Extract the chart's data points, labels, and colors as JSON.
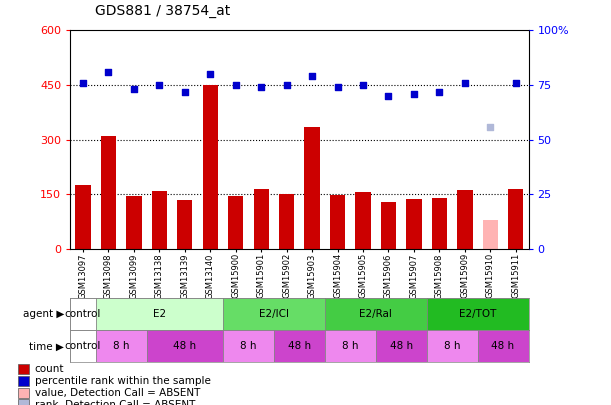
{
  "title": "GDS881 / 38754_at",
  "samples": [
    "GSM13097",
    "GSM13098",
    "GSM13099",
    "GSM13138",
    "GSM13139",
    "GSM13140",
    "GSM15900",
    "GSM15901",
    "GSM15902",
    "GSM15903",
    "GSM15904",
    "GSM15905",
    "GSM15906",
    "GSM15907",
    "GSM15908",
    "GSM15909",
    "GSM15910",
    "GSM15911"
  ],
  "counts": [
    175,
    310,
    145,
    160,
    135,
    450,
    145,
    165,
    150,
    335,
    148,
    157,
    130,
    138,
    140,
    163,
    80,
    165
  ],
  "count_absent": [
    false,
    false,
    false,
    false,
    false,
    false,
    false,
    false,
    false,
    false,
    false,
    false,
    false,
    false,
    false,
    false,
    true,
    false
  ],
  "percentile_ranks": [
    76,
    81,
    73,
    75,
    72,
    80,
    75,
    74,
    75,
    79,
    74,
    75,
    70,
    71,
    72,
    76,
    56,
    76
  ],
  "rank_absent": [
    false,
    false,
    false,
    false,
    false,
    false,
    false,
    false,
    false,
    false,
    false,
    false,
    false,
    false,
    false,
    false,
    true,
    false
  ],
  "ylim_left": [
    0,
    600
  ],
  "ylim_right": [
    0,
    100
  ],
  "yticks_left": [
    0,
    150,
    300,
    450,
    600
  ],
  "yticks_right": [
    0,
    25,
    50,
    75,
    100
  ],
  "bar_color": "#cc0000",
  "bar_absent_color": "#ffb3b3",
  "dot_color": "#0000cc",
  "dot_absent_color": "#b0b8d8",
  "grid_lines": [
    150,
    300,
    450
  ],
  "agent_groups": [
    {
      "label": "control",
      "start": 0,
      "end": 1,
      "color": "#ffffff"
    },
    {
      "label": "E2",
      "start": 1,
      "end": 6,
      "color": "#ccffcc"
    },
    {
      "label": "E2/ICI",
      "start": 6,
      "end": 10,
      "color": "#66dd66"
    },
    {
      "label": "E2/Ral",
      "start": 10,
      "end": 14,
      "color": "#44cc44"
    },
    {
      "label": "E2/TOT",
      "start": 14,
      "end": 18,
      "color": "#22bb22"
    }
  ],
  "time_patterns": [
    {
      "label": "control",
      "start": 0,
      "end": 1,
      "color": "#ffffff"
    },
    {
      "label": "8 h",
      "start": 1,
      "end": 3,
      "color": "#ee88ee"
    },
    {
      "label": "48 h",
      "start": 3,
      "end": 6,
      "color": "#cc44cc"
    },
    {
      "label": "8 h",
      "start": 6,
      "end": 8,
      "color": "#ee88ee"
    },
    {
      "label": "48 h",
      "start": 8,
      "end": 10,
      "color": "#cc44cc"
    },
    {
      "label": "8 h",
      "start": 10,
      "end": 12,
      "color": "#ee88ee"
    },
    {
      "label": "48 h",
      "start": 12,
      "end": 14,
      "color": "#cc44cc"
    },
    {
      "label": "8 h",
      "start": 14,
      "end": 16,
      "color": "#ee88ee"
    },
    {
      "label": "48 h",
      "start": 16,
      "end": 18,
      "color": "#cc44cc"
    }
  ],
  "legend_items": [
    {
      "label": "count",
      "color": "#cc0000"
    },
    {
      "label": "percentile rank within the sample",
      "color": "#0000cc"
    },
    {
      "label": "value, Detection Call = ABSENT",
      "color": "#ffb3b3"
    },
    {
      "label": "rank, Detection Call = ABSENT",
      "color": "#b0b8d8"
    }
  ]
}
